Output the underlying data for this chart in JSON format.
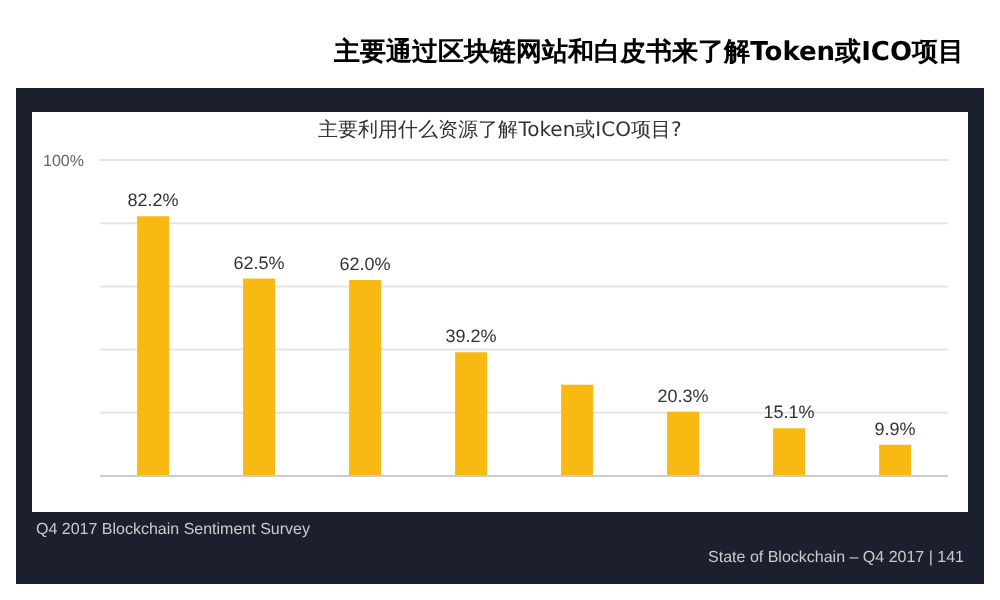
{
  "chart_data": {
    "type": "bar",
    "title": "主要通过区块链网站和白皮书来了解Token或ICO项目",
    "subtitle": "主要利用什么资源了解Token或ICO项目?",
    "categories": [
      null,
      null,
      null,
      null,
      null,
      null,
      null,
      null
    ],
    "values": [
      82.2,
      62.5,
      62.0,
      39.2,
      28.9,
      20.3,
      15.1,
      9.9
    ],
    "value_labels": [
      "82.2%",
      "62.5%",
      "62.0%",
      "39.2%",
      null,
      "20.3%",
      "15.1%",
      "9.9%"
    ],
    "color": "#f8b912",
    "ylim": [
      0,
      100
    ],
    "yticks": [
      {
        "value": 0,
        "label": null
      },
      {
        "value": 20,
        "label": null
      },
      {
        "value": 40,
        "label": null
      },
      {
        "value": 60,
        "label": null
      },
      {
        "value": 80,
        "label": null
      },
      {
        "value": 100,
        "label": "100%"
      }
    ],
    "grid": "y",
    "annotations": [
      "Q4 2017 Blockchain Sentiment Survey",
      "State of Blockchain – Q4 2017 | 141"
    ]
  }
}
